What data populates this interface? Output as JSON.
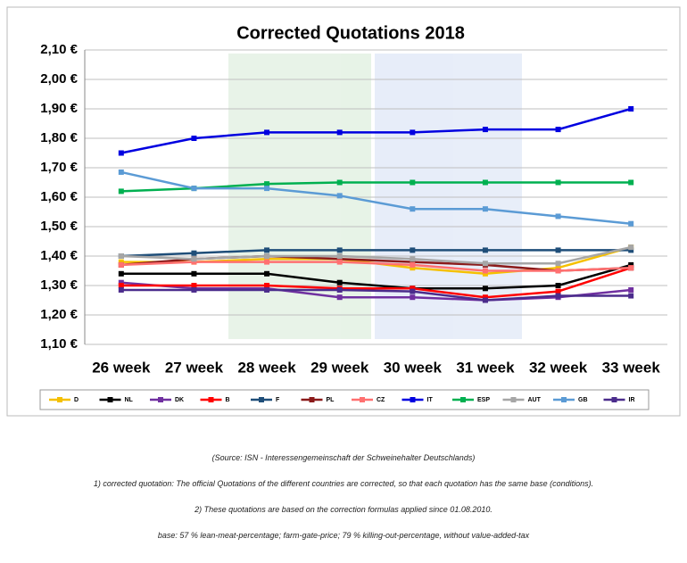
{
  "chart_data": {
    "type": "line",
    "title": "Corrected Quotations 2018",
    "categories": [
      "26 week",
      "27 week",
      "28 week",
      "29 week",
      "30 week",
      "31 week",
      "32 week",
      "33 week"
    ],
    "ylim": [
      1.1,
      2.1
    ],
    "yticks": [
      {
        "value": 1.1,
        "label": "1,10 €"
      },
      {
        "value": 1.2,
        "label": "1,20 €"
      },
      {
        "value": 1.3,
        "label": "1,30 €"
      },
      {
        "value": 1.4,
        "label": "1,40 €"
      },
      {
        "value": 1.5,
        "label": "1,50 €"
      },
      {
        "value": 1.6,
        "label": "1,60 €"
      },
      {
        "value": 1.7,
        "label": "1,70 €"
      },
      {
        "value": 1.8,
        "label": "1,80 €"
      },
      {
        "value": 1.9,
        "label": "1,90 €"
      },
      {
        "value": 2.0,
        "label": "2,00 €"
      },
      {
        "value": 2.1,
        "label": "2,10 €"
      }
    ],
    "grid": true,
    "series": [
      {
        "name": "D",
        "color": "#f5c000",
        "values": [
          1.38,
          1.38,
          1.39,
          1.39,
          1.36,
          1.34,
          1.36,
          1.43
        ]
      },
      {
        "name": "NL",
        "color": "#000000",
        "values": [
          1.34,
          1.34,
          1.34,
          1.31,
          1.29,
          1.29,
          1.3,
          1.37
        ]
      },
      {
        "name": "DK",
        "color": "#7030a0",
        "values": [
          1.31,
          1.29,
          1.29,
          1.26,
          1.26,
          1.25,
          1.26,
          1.285
        ]
      },
      {
        "name": "B",
        "color": "#ff0000",
        "values": [
          1.3,
          1.3,
          1.3,
          1.29,
          1.29,
          1.26,
          1.28,
          1.36
        ]
      },
      {
        "name": "F",
        "color": "#1f4e79",
        "values": [
          1.4,
          1.41,
          1.42,
          1.42,
          1.42,
          1.42,
          1.42,
          1.42
        ]
      },
      {
        "name": "PL",
        "color": "#8b1a1a",
        "values": [
          1.37,
          1.39,
          1.4,
          1.39,
          1.38,
          1.37,
          1.35,
          1.36
        ]
      },
      {
        "name": "CZ",
        "color": "#ff7070",
        "values": [
          1.37,
          1.38,
          1.38,
          1.38,
          1.37,
          1.35,
          1.35,
          1.36
        ]
      },
      {
        "name": "IT",
        "color": "#0000e0",
        "values": [
          1.75,
          1.8,
          1.82,
          1.82,
          1.82,
          1.83,
          1.83,
          1.9
        ]
      },
      {
        "name": "ESP",
        "color": "#00b050",
        "values": [
          1.62,
          1.63,
          1.645,
          1.65,
          1.65,
          1.65,
          1.65,
          1.65
        ]
      },
      {
        "name": "AUT",
        "color": "#a6a6a6",
        "values": [
          1.4,
          1.39,
          1.4,
          1.4,
          1.39,
          1.375,
          1.375,
          1.43
        ]
      },
      {
        "name": "GB",
        "color": "#5b9bd5",
        "values": [
          1.685,
          1.63,
          1.63,
          1.605,
          1.56,
          1.56,
          1.535,
          1.51
        ]
      },
      {
        "name": "IR",
        "color": "#4b2c8c",
        "values": [
          1.285,
          1.285,
          1.285,
          1.285,
          1.28,
          1.25,
          1.265,
          1.265
        ]
      }
    ]
  },
  "notes": [
    "(Source: ISN - Interessengemeinschaft der Schweinehalter Deutschlands)",
    "1) corrected quotation: The official Quotations of the different countries are corrected, so that each quotation has the same base (conditions).",
    "2) These quotations are based on the correction formulas applied since 01.08.2010.",
    "base: 57 % lean-meat-percentage; farm-gate-price; 79 % killing-out-percentage, without value-added-tax"
  ]
}
